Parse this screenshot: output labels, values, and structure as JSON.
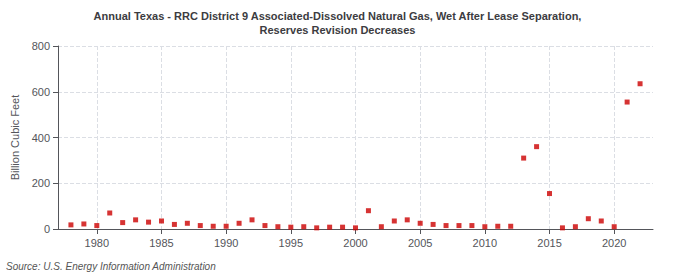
{
  "chart_data": {
    "type": "scatter",
    "title": "Annual Texas - RRC District 9 Associated-Dissolved Natural Gas, Wet After Lease Separation,\nReserves Revision Decreases",
    "ylabel": "Billion Cubic Feet",
    "annotations": [
      "Source: U.S. Energy Information Administration"
    ],
    "x": [
      1978,
      1979,
      1980,
      1981,
      1982,
      1983,
      1984,
      1985,
      1986,
      1987,
      1988,
      1989,
      1990,
      1991,
      1992,
      1993,
      1994,
      1995,
      1996,
      1997,
      1998,
      1999,
      2000,
      2001,
      2002,
      2003,
      2004,
      2005,
      2006,
      2007,
      2008,
      2009,
      2010,
      2011,
      2012,
      2013,
      2014,
      2015,
      2016,
      2017,
      2018,
      2019,
      2020,
      2021,
      2022
    ],
    "values": [
      18,
      22,
      15,
      70,
      28,
      40,
      30,
      35,
      20,
      25,
      15,
      12,
      12,
      25,
      40,
      15,
      10,
      8,
      10,
      5,
      8,
      8,
      5,
      80,
      10,
      35,
      40,
      25,
      20,
      15,
      15,
      15,
      10,
      12,
      12,
      310,
      360,
      155,
      5,
      10,
      45,
      35,
      10,
      555,
      635
    ],
    "color": "#cc0000",
    "marker": "square",
    "xlim": [
      1977,
      2023
    ],
    "ylim": [
      0,
      800
    ],
    "xticks": [
      1980,
      1985,
      1990,
      1995,
      2000,
      2005,
      2010,
      2015,
      2020
    ],
    "yticks": [
      0,
      200,
      400,
      600,
      800
    ],
    "grid": true
  }
}
